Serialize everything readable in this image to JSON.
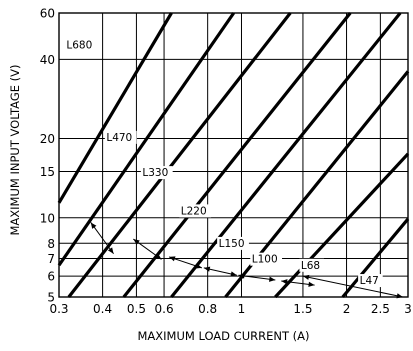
{
  "chart_data": {
    "type": "line",
    "xlabel": "MAXIMUM LOAD CURRENT (A)",
    "ylabel": "MAXIMUM INPUT VOLTAGE (V)",
    "x_scale": "log",
    "y_scale": "log",
    "xlim": [
      0.3,
      3
    ],
    "ylim": [
      5,
      60
    ],
    "grid": true,
    "x_ticks": [
      {
        "value": 0.3,
        "label": "0.3"
      },
      {
        "value": 0.4,
        "label": "0.4"
      },
      {
        "value": 0.5,
        "label": "0.5"
      },
      {
        "value": 0.6,
        "label": "0.6"
      },
      {
        "value": 0.8,
        "label": "0.8"
      },
      {
        "value": 1,
        "label": "1"
      },
      {
        "value": 1.5,
        "label": "1.5"
      },
      {
        "value": 2,
        "label": "2"
      },
      {
        "value": 2.5,
        "label": "2.5"
      },
      {
        "value": 3,
        "label": "3"
      }
    ],
    "y_ticks": [
      {
        "value": 5,
        "label": "5"
      },
      {
        "value": 6,
        "label": "6"
      },
      {
        "value": 7,
        "label": "7"
      },
      {
        "value": 8,
        "label": "8"
      },
      {
        "value": 10,
        "label": "10"
      },
      {
        "value": 15,
        "label": "15"
      },
      {
        "value": 20,
        "label": "20"
      },
      {
        "value": 40,
        "label": "40"
      },
      {
        "value": 60,
        "label": "60"
      }
    ],
    "boundaries": [
      {
        "start": [
          0.3,
          11.4
        ],
        "end": [
          0.63,
          60
        ]
      },
      {
        "start": [
          0.3,
          6.6
        ],
        "end": [
          0.95,
          60
        ]
      },
      {
        "start": [
          0.32,
          5
        ],
        "end": [
          1.38,
          60
        ]
      },
      {
        "start": [
          0.46,
          5
        ],
        "end": [
          2.05,
          60
        ]
      },
      {
        "start": [
          0.63,
          5
        ],
        "end": [
          2.85,
          60
        ]
      },
      {
        "start": [
          0.9,
          5
        ],
        "end": [
          3,
          36
        ]
      },
      {
        "start": [
          1.25,
          5
        ],
        "end": [
          3,
          17.5
        ]
      },
      {
        "start": [
          1.95,
          5
        ],
        "end": [
          3,
          9.9
        ]
      }
    ],
    "regions": [
      {
        "label": "L680",
        "x": 0.315,
        "y": 44
      },
      {
        "label": "L470",
        "x": 0.41,
        "y": 19.6
      },
      {
        "label": "L330",
        "x": 0.52,
        "y": 14.4
      },
      {
        "label": "L220",
        "x": 0.67,
        "y": 10.3
      },
      {
        "label": "L150",
        "x": 0.86,
        "y": 7.75
      },
      {
        "label": "L100",
        "x": 1.07,
        "y": 6.75
      },
      {
        "label": "L68",
        "x": 1.48,
        "y": 6.4
      },
      {
        "label": "L47",
        "x": 2.18,
        "y": 5.6
      }
    ],
    "arrows": [
      {
        "from": [
          0.37,
          9.6
        ],
        "to": [
          0.43,
          7.3
        ]
      },
      {
        "from": [
          0.49,
          8.3
        ],
        "to": [
          0.59,
          6.95
        ]
      },
      {
        "from": [
          0.62,
          7.1
        ],
        "to": [
          0.77,
          6.45
        ]
      },
      {
        "from": [
          0.78,
          6.45
        ],
        "to": [
          0.97,
          6.05
        ]
      },
      {
        "from": [
          0.98,
          6.05
        ],
        "to": [
          1.25,
          5.8
        ]
      },
      {
        "from": [
          1.3,
          5.75
        ],
        "to": [
          1.62,
          5.55
        ]
      },
      {
        "from": [
          1.5,
          6.0
        ],
        "to": [
          2.9,
          5
        ]
      }
    ]
  }
}
